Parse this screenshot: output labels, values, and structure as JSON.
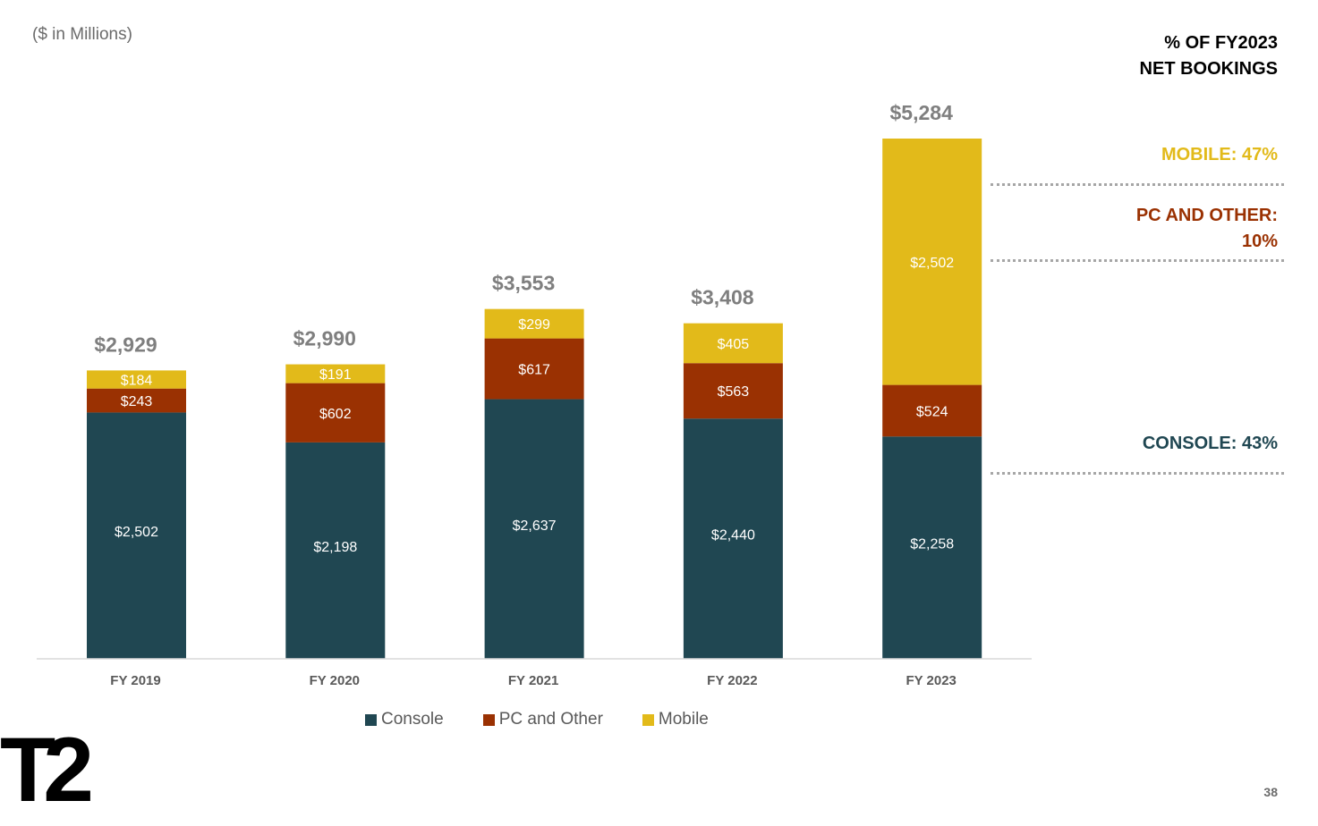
{
  "unit_note": "($ in Millions)",
  "share_panel": {
    "title_line1": "% OF FY2023",
    "title_line2": "NET BOOKINGS",
    "mobile": "MOBILE: 47%",
    "pc_line1": "PC AND OTHER:",
    "pc_line2": "10%",
    "console": "CONSOLE: 43%"
  },
  "colors": {
    "console": "#204752",
    "pc": "#9a3102",
    "mobile": "#e2ba1a",
    "axis_text": "#595959",
    "total_text": "#7f7f7f"
  },
  "chart_data": {
    "type": "bar",
    "stacked": true,
    "title": "",
    "xlabel": "",
    "ylabel": "",
    "ylim": [
      0,
      5500
    ],
    "categories": [
      "FY 2019",
      "FY 2020",
      "FY 2021",
      "FY 2022",
      "FY 2023"
    ],
    "series": [
      {
        "name": "Console",
        "values": [
          2502,
          2198,
          2637,
          2440,
          2258
        ],
        "labels": [
          "$2,502",
          "$2,198",
          "$2,637",
          "$2,440",
          "$2,258"
        ]
      },
      {
        "name": "PC and Other",
        "values": [
          243,
          602,
          617,
          563,
          524
        ],
        "labels": [
          "$243",
          "$602",
          "$617",
          "$563",
          "$524"
        ]
      },
      {
        "name": "Mobile",
        "values": [
          184,
          191,
          299,
          405,
          2502
        ],
        "labels": [
          "$184",
          "$191",
          "$299",
          "$405",
          "$2,502"
        ]
      }
    ],
    "totals": [
      2929,
      2990,
      3553,
      3408,
      5284
    ],
    "total_labels": [
      "$2,929",
      "$2,990",
      "$3,553",
      "$3,408",
      "$5,284"
    ],
    "legend": [
      "Console",
      "PC and Other",
      "Mobile"
    ],
    "grid": false,
    "legend_position": "bottom"
  },
  "logo_text": "T2",
  "page_number": "38"
}
